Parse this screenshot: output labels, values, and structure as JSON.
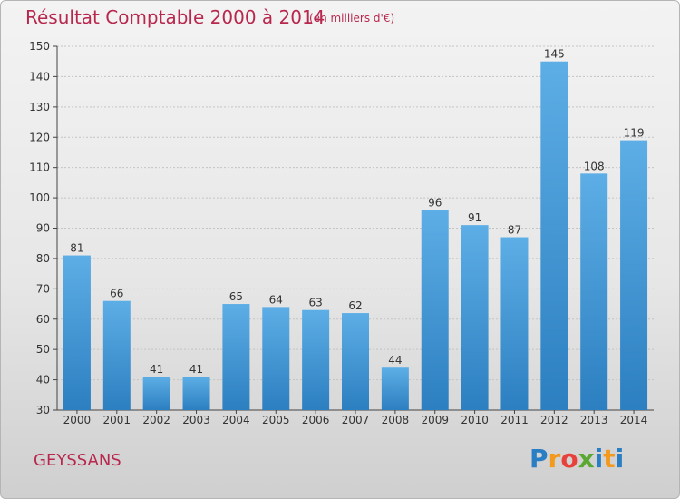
{
  "header": {
    "title": "Résultat Comptable 2000 à 2014",
    "subtitle": "(en milliers d'€)"
  },
  "footer": {
    "place": "GEYSSANS",
    "logo_letters": [
      "P",
      "r",
      "o",
      "x",
      "i",
      "t",
      "i"
    ],
    "logo_colors": [
      "#2a7ec4",
      "#f29a1d",
      "#e8403a",
      "#5aa832",
      "#2a7ec4",
      "#f29a1d",
      "#2a7ec4"
    ]
  },
  "chart_data": {
    "type": "bar",
    "title": "Résultat Comptable 2000 à 2014",
    "categories": [
      "2000",
      "2001",
      "2002",
      "2003",
      "2004",
      "2005",
      "2006",
      "2007",
      "2008",
      "2009",
      "2010",
      "2011",
      "2012",
      "2013",
      "2014"
    ],
    "values": [
      81,
      66,
      41,
      41,
      65,
      64,
      63,
      62,
      44,
      96,
      91,
      87,
      145,
      108,
      119
    ],
    "ylim": [
      30,
      150
    ],
    "yticks": [
      30,
      40,
      50,
      60,
      70,
      80,
      90,
      100,
      110,
      120,
      130,
      140,
      150
    ],
    "grid": true,
    "bar_color": "#4a9fdc"
  }
}
